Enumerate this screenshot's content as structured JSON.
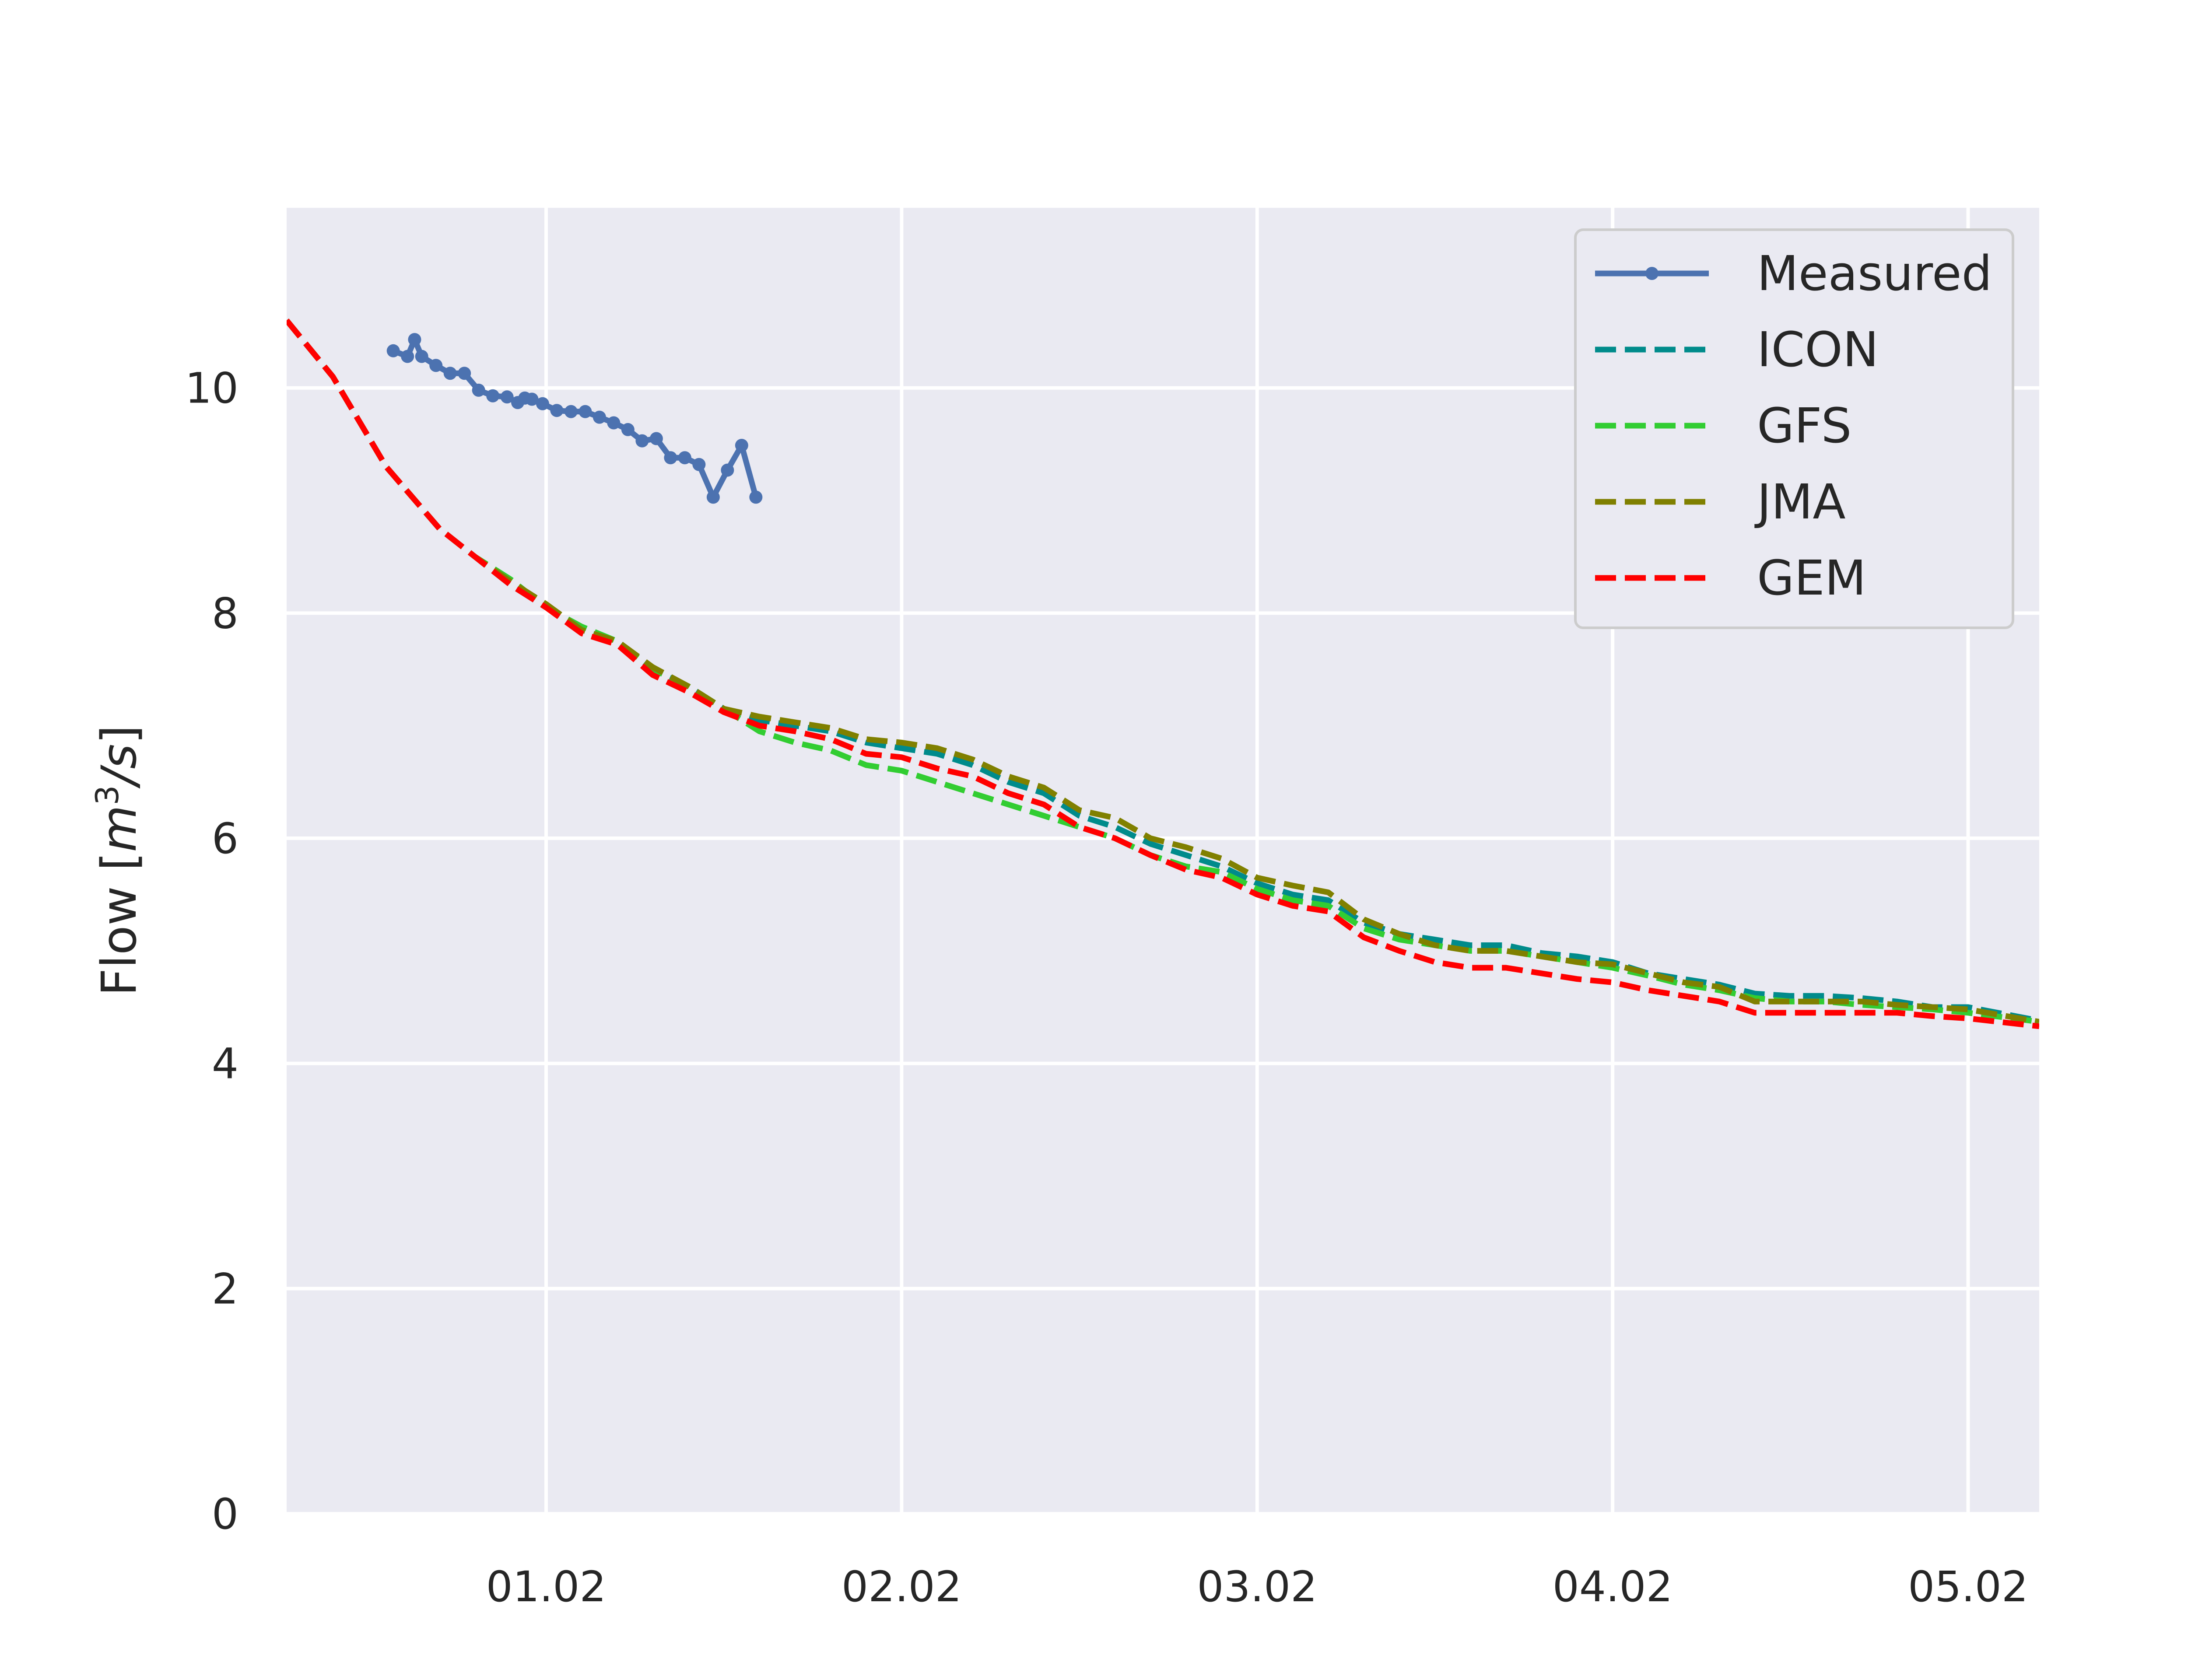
{
  "chart_data": {
    "type": "line",
    "title": "",
    "xlabel": "",
    "ylabel": "Flow [m³/s]",
    "ylabel_parts": {
      "main": "Flow [",
      "m": "m",
      "exp": "3",
      "rest": "/s",
      "close": "]"
    },
    "xlim": [
      -0.73,
      4.2
    ],
    "ylim": [
      0,
      11.6
    ],
    "x_unit": "days from 01.02",
    "xticks": [
      0,
      1,
      2,
      3,
      4
    ],
    "xtick_labels": [
      "01.02",
      "02.02",
      "03.02",
      "04.02",
      "05.02"
    ],
    "yticks": [
      0,
      2,
      4,
      6,
      8,
      10
    ],
    "ytick_labels": [
      "0",
      "2",
      "4",
      "6",
      "8",
      "10"
    ],
    "grid": true,
    "legend_position": "top-right",
    "series": [
      {
        "name": "Measured",
        "style": "solid-marker",
        "color": "#4c72b0",
        "x": [
          -0.43,
          -0.39,
          -0.37,
          -0.35,
          -0.31,
          -0.27,
          -0.23,
          -0.19,
          -0.15,
          -0.11,
          -0.08,
          -0.06,
          -0.04,
          -0.01,
          0.03,
          0.07,
          0.11,
          0.15,
          0.19,
          0.23,
          0.27,
          0.31,
          0.35,
          0.39,
          0.43,
          0.47,
          0.51,
          0.55,
          0.59
        ],
        "y": [
          10.33,
          10.28,
          10.43,
          10.28,
          10.2,
          10.13,
          10.13,
          9.98,
          9.93,
          9.92,
          9.87,
          9.91,
          9.9,
          9.86,
          9.8,
          9.79,
          9.79,
          9.74,
          9.69,
          9.63,
          9.53,
          9.55,
          9.38,
          9.38,
          9.32,
          9.03,
          9.27,
          9.49,
          9.03
        ]
      },
      {
        "name": "ICON",
        "style": "dashed",
        "color": "#008b8b",
        "x": [
          -0.73,
          -0.6,
          -0.45,
          -0.3,
          -0.2,
          -0.1,
          0.0,
          0.1,
          0.2,
          0.3,
          0.4,
          0.5,
          0.6,
          0.7,
          0.8,
          0.9,
          1.0,
          1.1,
          1.2,
          1.3,
          1.4,
          1.5,
          1.6,
          1.7,
          1.8,
          1.9,
          2.0,
          2.1,
          2.2,
          2.3,
          2.4,
          2.5,
          2.6,
          2.7,
          2.8,
          2.9,
          3.0,
          3.1,
          3.2,
          3.3,
          3.4,
          3.5,
          3.6,
          3.7,
          3.8,
          3.9,
          4.0,
          4.2
        ],
        "y": [
          10.6,
          10.1,
          9.3,
          8.75,
          8.5,
          8.25,
          8.05,
          7.85,
          7.75,
          7.5,
          7.35,
          7.15,
          7.05,
          7.0,
          6.95,
          6.85,
          6.8,
          6.75,
          6.65,
          6.5,
          6.4,
          6.2,
          6.1,
          5.95,
          5.85,
          5.75,
          5.6,
          5.5,
          5.45,
          5.25,
          5.15,
          5.1,
          5.05,
          5.05,
          4.98,
          4.95,
          4.9,
          4.8,
          4.75,
          4.7,
          4.62,
          4.6,
          4.6,
          4.58,
          4.55,
          4.5,
          4.5,
          4.38
        ]
      },
      {
        "name": "GFS",
        "style": "dashed",
        "color": "#32cd32",
        "x": [
          -0.73,
          -0.6,
          -0.45,
          -0.3,
          -0.2,
          -0.1,
          0.0,
          0.1,
          0.2,
          0.3,
          0.4,
          0.5,
          0.6,
          0.7,
          0.8,
          0.9,
          1.0,
          1.1,
          1.2,
          1.3,
          1.4,
          1.5,
          1.6,
          1.7,
          1.8,
          1.9,
          2.0,
          2.1,
          2.2,
          2.3,
          2.4,
          2.5,
          2.6,
          2.7,
          2.8,
          2.9,
          3.0,
          3.1,
          3.2,
          3.3,
          3.4,
          3.5,
          3.6,
          3.7,
          3.8,
          3.9,
          4.0,
          4.2
        ],
        "y": [
          10.6,
          10.1,
          9.3,
          8.75,
          8.5,
          8.3,
          8.05,
          7.88,
          7.75,
          7.5,
          7.35,
          7.15,
          6.95,
          6.85,
          6.78,
          6.65,
          6.6,
          6.5,
          6.4,
          6.3,
          6.2,
          6.1,
          6.0,
          5.85,
          5.75,
          5.7,
          5.55,
          5.45,
          5.4,
          5.2,
          5.1,
          5.05,
          5.0,
          5.0,
          4.95,
          4.9,
          4.85,
          4.78,
          4.7,
          4.65,
          4.58,
          4.55,
          4.55,
          4.52,
          4.5,
          4.48,
          4.45,
          4.37
        ]
      },
      {
        "name": "JMA",
        "style": "dashed",
        "color": "#808000",
        "x": [
          -0.73,
          -0.6,
          -0.45,
          -0.3,
          -0.2,
          -0.1,
          0.0,
          0.1,
          0.2,
          0.3,
          0.4,
          0.5,
          0.6,
          0.7,
          0.8,
          0.9,
          1.0,
          1.1,
          1.2,
          1.3,
          1.4,
          1.5,
          1.6,
          1.7,
          1.8,
          1.9,
          2.0,
          2.1,
          2.2,
          2.3,
          2.4,
          2.5,
          2.6,
          2.7,
          2.8,
          2.9,
          3.0,
          3.1,
          3.2,
          3.3,
          3.4,
          3.5,
          3.6,
          3.7,
          3.8,
          3.9,
          4.0,
          4.2
        ],
        "y": [
          10.6,
          10.1,
          9.3,
          8.75,
          8.5,
          8.28,
          8.08,
          7.85,
          7.75,
          7.52,
          7.35,
          7.15,
          7.08,
          7.03,
          6.98,
          6.88,
          6.85,
          6.8,
          6.7,
          6.55,
          6.45,
          6.25,
          6.18,
          6.0,
          5.92,
          5.82,
          5.65,
          5.58,
          5.52,
          5.28,
          5.15,
          5.05,
          5.0,
          5.0,
          4.95,
          4.9,
          4.88,
          4.8,
          4.72,
          4.68,
          4.55,
          4.55,
          4.55,
          4.55,
          4.52,
          4.5,
          4.48,
          4.37
        ]
      },
      {
        "name": "GEM",
        "style": "dashed",
        "color": "#ff0000",
        "x": [
          -0.73,
          -0.6,
          -0.45,
          -0.3,
          -0.2,
          -0.1,
          0.0,
          0.1,
          0.2,
          0.3,
          0.4,
          0.5,
          0.6,
          0.7,
          0.8,
          0.9,
          1.0,
          1.1,
          1.2,
          1.3,
          1.4,
          1.5,
          1.6,
          1.7,
          1.8,
          1.9,
          2.0,
          2.1,
          2.2,
          2.3,
          2.4,
          2.5,
          2.6,
          2.7,
          2.8,
          2.9,
          3.0,
          3.1,
          3.2,
          3.3,
          3.4,
          3.5,
          3.6,
          3.7,
          3.8,
          3.9,
          4.0,
          4.2
        ],
        "y": [
          10.6,
          10.1,
          9.3,
          8.75,
          8.5,
          8.25,
          8.05,
          7.82,
          7.72,
          7.45,
          7.3,
          7.12,
          7.0,
          6.95,
          6.88,
          6.75,
          6.72,
          6.62,
          6.55,
          6.4,
          6.3,
          6.1,
          6.0,
          5.85,
          5.72,
          5.65,
          5.5,
          5.4,
          5.35,
          5.12,
          5.0,
          4.9,
          4.85,
          4.85,
          4.8,
          4.75,
          4.72,
          4.65,
          4.6,
          4.55,
          4.45,
          4.45,
          4.45,
          4.45,
          4.45,
          4.42,
          4.4,
          4.33
        ]
      }
    ]
  }
}
